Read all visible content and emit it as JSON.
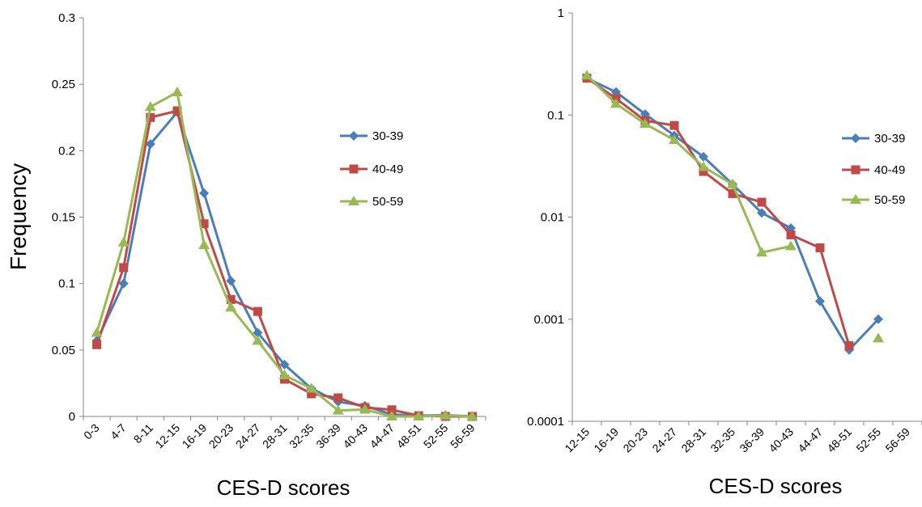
{
  "figure": {
    "shared_ylabel": "Frequency"
  },
  "chart_data": [
    {
      "type": "line",
      "scale": "linear",
      "xlabel": "CES-D scores",
      "ylabel": "Frequency",
      "ylim": [
        0,
        0.3
      ],
      "yticks": [
        "0",
        "0.05",
        "0.1",
        "0.15",
        "0.2",
        "0.25",
        "0.3"
      ],
      "categories": [
        "0-3",
        "4-7",
        "8-11",
        "12-15",
        "16-19",
        "20-23",
        "24-27",
        "28-31",
        "32-35",
        "36-39",
        "40-43",
        "44-47",
        "48-51",
        "52-55",
        "56-59"
      ],
      "legend_position": "right",
      "series": [
        {
          "name": "30-39",
          "color": "#4a7ebb",
          "marker": "diamond",
          "values": [
            0.057,
            0.1,
            0.205,
            0.229,
            0.168,
            0.102,
            0.063,
            0.039,
            0.021,
            0.011,
            0.008,
            0.0015,
            0.0005,
            0.001,
            0.0
          ]
        },
        {
          "name": "40-49",
          "color": "#be4b48",
          "marker": "square",
          "values": [
            0.054,
            0.112,
            0.225,
            0.23,
            0.145,
            0.088,
            0.079,
            0.028,
            0.017,
            0.014,
            0.0067,
            0.005,
            0.00055,
            0.0,
            0.0
          ]
        },
        {
          "name": "50-59",
          "color": "#98b954",
          "marker": "triangle",
          "values": [
            0.063,
            0.131,
            0.233,
            0.244,
            0.129,
            0.082,
            0.057,
            0.031,
            0.021,
            0.0045,
            0.0052,
            0.0,
            0.0,
            0.00065,
            0.0
          ]
        }
      ]
    },
    {
      "type": "line",
      "scale": "log",
      "xlabel": "CES-D scores",
      "ylim": [
        0.0001,
        1
      ],
      "yticks": [
        "0.0001",
        "0.001",
        "0.01",
        "0.1",
        "1"
      ],
      "categories": [
        "12-15",
        "16-19",
        "20-23",
        "24-27",
        "28-31",
        "32-35",
        "36-39",
        "40-43",
        "44-47",
        "48-51",
        "52-55",
        "56-59"
      ],
      "legend_position": "right",
      "series": [
        {
          "name": "30-39",
          "color": "#4a7ebb",
          "marker": "diamond",
          "values": [
            0.229,
            0.168,
            0.102,
            0.063,
            0.039,
            0.021,
            0.011,
            0.0078,
            0.0015,
            0.0005,
            0.001,
            null
          ]
        },
        {
          "name": "40-49",
          "color": "#be4b48",
          "marker": "square",
          "values": [
            0.23,
            0.145,
            0.088,
            0.079,
            0.028,
            0.017,
            0.014,
            0.0067,
            0.005,
            0.00055,
            null,
            null
          ]
        },
        {
          "name": "50-59",
          "color": "#98b954",
          "marker": "triangle",
          "values": [
            0.244,
            0.129,
            0.082,
            0.057,
            0.031,
            0.021,
            0.0045,
            0.0052,
            null,
            null,
            0.00065,
            null
          ]
        }
      ]
    }
  ]
}
